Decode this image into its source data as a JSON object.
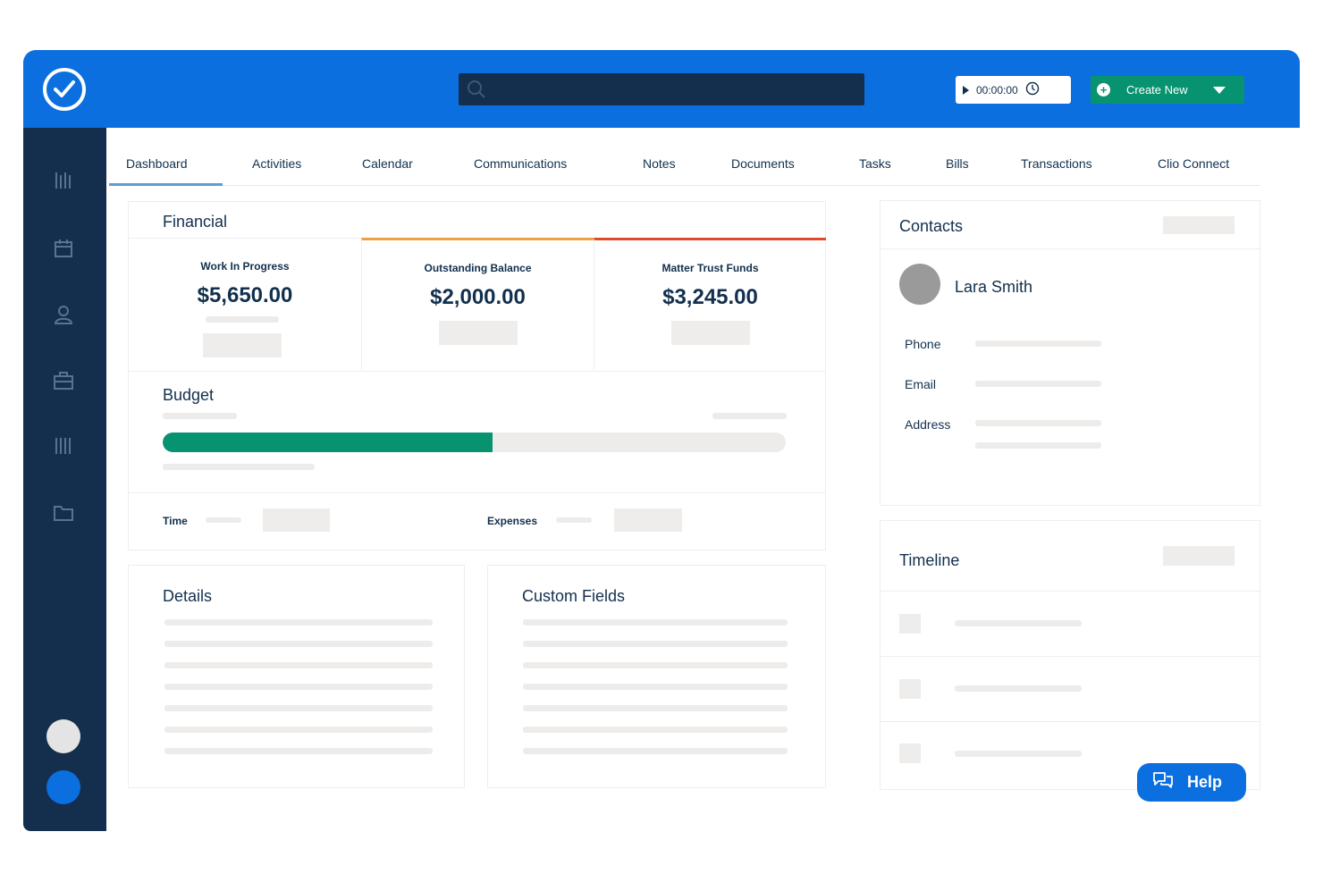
{
  "header": {
    "logo_icon": "check-circle-icon",
    "search": {
      "placeholder": "",
      "icon": "search-icon"
    },
    "timer": {
      "value": "00:00:00",
      "play_icon": "play-icon",
      "clock_icon": "clock-icon"
    },
    "create_button": {
      "label": "Create New",
      "icon": "plus-circle-icon",
      "caret_icon": "chevron-down-icon"
    }
  },
  "sidebar": {
    "items": [
      {
        "icon": "matters-icon"
      },
      {
        "icon": "calendar-icon"
      },
      {
        "icon": "contacts-icon"
      },
      {
        "icon": "briefcase-icon"
      },
      {
        "icon": "billing-icon"
      },
      {
        "icon": "folder-icon"
      }
    ]
  },
  "tabs": [
    {
      "label": "Dashboard",
      "active": true
    },
    {
      "label": "Activities"
    },
    {
      "label": "Calendar"
    },
    {
      "label": "Communications"
    },
    {
      "label": "Notes"
    },
    {
      "label": "Documents"
    },
    {
      "label": "Tasks"
    },
    {
      "label": "Bills"
    },
    {
      "label": "Transactions"
    },
    {
      "label": "Clio Connect"
    }
  ],
  "financial": {
    "title": "Financial",
    "columns": [
      {
        "label": "Work In Progress",
        "value": "$5,650.00",
        "accent": ""
      },
      {
        "label": "Outstanding Balance",
        "value": "$2,000.00",
        "accent": "#f0a040"
      },
      {
        "label": "Matter Trust Funds",
        "value": "$3,245.00",
        "accent": "#e04a2a"
      }
    ]
  },
  "budget": {
    "title": "Budget",
    "progress": 0.53,
    "bar_color": "#089370",
    "time_label": "Time",
    "expenses_label": "Expenses"
  },
  "details": {
    "title": "Details"
  },
  "custom_fields": {
    "title": "Custom Fields"
  },
  "contacts": {
    "title": "Contacts",
    "name": "Lara Smith",
    "fields": [
      "Phone",
      "Email",
      "Address"
    ]
  },
  "timeline": {
    "title": "Timeline"
  },
  "help": {
    "label": "Help",
    "icon": "chat-icon"
  },
  "colors": {
    "brand_blue": "#0b6fe0",
    "navy": "#132f4d",
    "green": "#089370"
  }
}
